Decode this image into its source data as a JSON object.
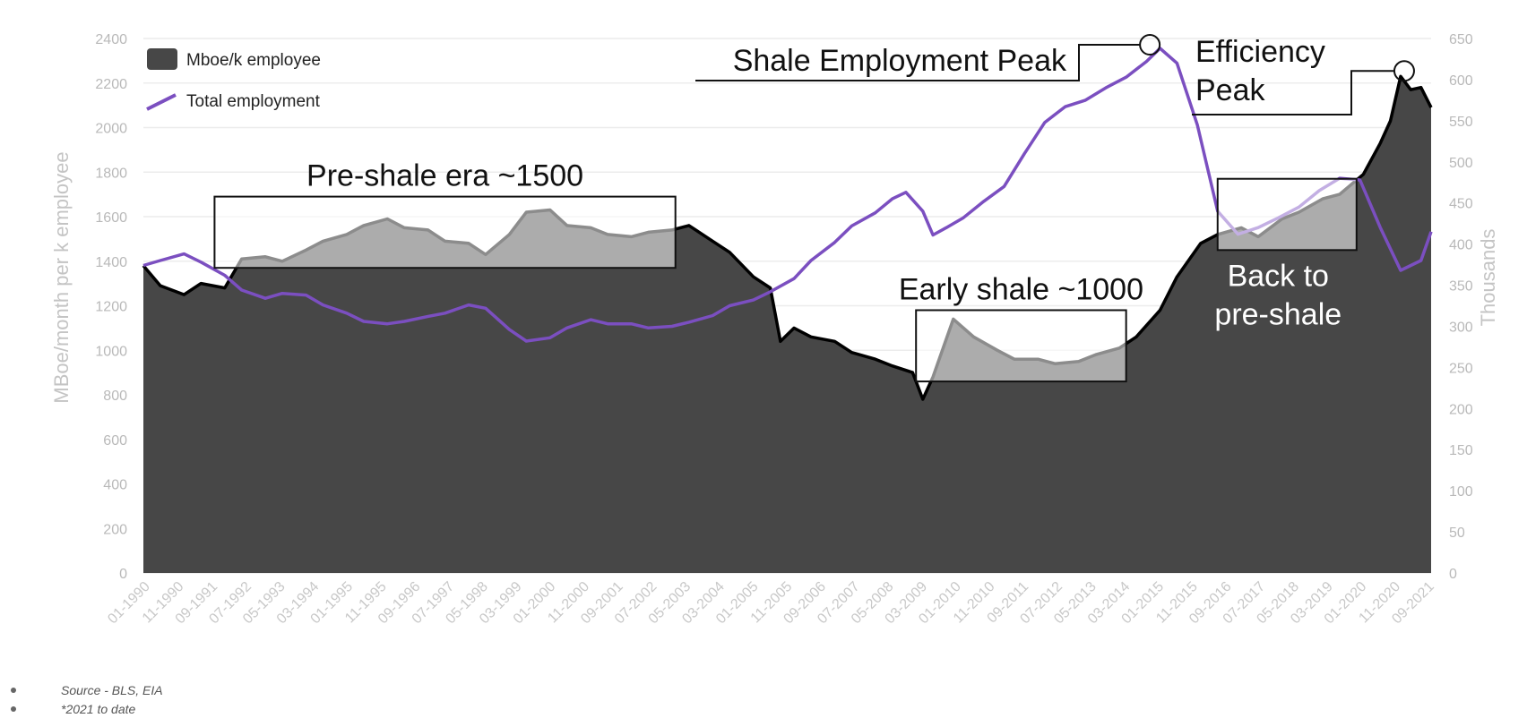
{
  "footnotes": [
    {
      "text": "Source - BLS, EIA"
    },
    {
      "text": "*2021 to date"
    }
  ],
  "colors": {
    "area": "#474747",
    "area_edge": "#000000",
    "employment_line": "#7b4fc0",
    "grid": "#ececec",
    "box_fill": "#ffffff",
    "box_stroke": "#111111"
  },
  "chart_data": {
    "type": "area",
    "title": "",
    "xlabel": "",
    "ylabel": "MBoe/month per k employee",
    "y2label": "Thousands",
    "ylim": [
      0,
      2400
    ],
    "y2lim": [
      0,
      650
    ],
    "yticks": [
      0,
      200,
      400,
      600,
      800,
      1000,
      1200,
      1400,
      1600,
      1800,
      2000,
      2200,
      2400
    ],
    "y2ticks": [
      0,
      50,
      100,
      150,
      200,
      250,
      300,
      350,
      400,
      450,
      500,
      550,
      600,
      650
    ],
    "xticks": [
      "01-1990",
      "11-1990",
      "09-1991",
      "07-1992",
      "05-1993",
      "03-1994",
      "01-1995",
      "11-1995",
      "09-1996",
      "07-1997",
      "05-1998",
      "03-1999",
      "01-2000",
      "11-2000",
      "09-2001",
      "07-2002",
      "05-2003",
      "03-2004",
      "01-2005",
      "11-2005",
      "09-2006",
      "07-2007",
      "05-2008",
      "03-2009",
      "01-2010",
      "11-2010",
      "09-2011",
      "07-2012",
      "05-2013",
      "03-2014",
      "01-2015",
      "11-2015",
      "09-2016",
      "07-2017",
      "05-2018",
      "03-2019",
      "01-2020",
      "11-2020",
      "09-2021"
    ],
    "grid": true,
    "legend_position": "top-left",
    "series": [
      {
        "name": "Mboe/k employee",
        "type": "area",
        "axis": "left",
        "x": [
          "1990-01",
          "1990-06",
          "1991-01",
          "1991-06",
          "1992-01",
          "1992-06",
          "1993-01",
          "1993-06",
          "1994-01",
          "1994-06",
          "1995-01",
          "1995-06",
          "1996-01",
          "1996-06",
          "1997-01",
          "1997-06",
          "1998-01",
          "1998-06",
          "1999-01",
          "1999-06",
          "2000-01",
          "2000-06",
          "2001-01",
          "2001-06",
          "2002-01",
          "2002-06",
          "2003-01",
          "2003-06",
          "2004-01",
          "2004-06",
          "2005-01",
          "2005-06",
          "2005-09",
          "2006-01",
          "2006-06",
          "2007-01",
          "2007-06",
          "2008-01",
          "2008-06",
          "2008-12",
          "2009-03",
          "2009-06",
          "2009-12",
          "2010-06",
          "2011-01",
          "2011-06",
          "2012-01",
          "2012-06",
          "2013-01",
          "2013-06",
          "2014-01",
          "2014-06",
          "2015-01",
          "2015-06",
          "2016-01",
          "2016-06",
          "2017-01",
          "2017-06",
          "2018-01",
          "2018-06",
          "2019-01",
          "2019-06",
          "2020-01",
          "2020-06",
          "2020-09",
          "2020-12",
          "2021-03",
          "2021-06",
          "2021-09"
        ],
        "values": [
          1380,
          1290,
          1250,
          1300,
          1280,
          1410,
          1420,
          1400,
          1450,
          1490,
          1520,
          1560,
          1590,
          1550,
          1540,
          1490,
          1480,
          1430,
          1520,
          1620,
          1630,
          1560,
          1550,
          1520,
          1510,
          1530,
          1540,
          1560,
          1490,
          1440,
          1330,
          1280,
          1040,
          1100,
          1060,
          1040,
          990,
          960,
          930,
          900,
          780,
          880,
          1140,
          1060,
          1000,
          960,
          960,
          940,
          950,
          980,
          1010,
          1060,
          1180,
          1330,
          1480,
          1520,
          1550,
          1510,
          1590,
          1620,
          1680,
          1700,
          1790,
          1930,
          2030,
          2230,
          2170,
          2180,
          2090
        ]
      },
      {
        "name": "Total employment",
        "type": "line",
        "axis": "right",
        "x": [
          "1990-01",
          "1990-06",
          "1991-01",
          "1991-06",
          "1992-01",
          "1992-06",
          "1993-01",
          "1993-06",
          "1994-01",
          "1994-06",
          "1995-01",
          "1995-06",
          "1996-01",
          "1996-06",
          "1997-01",
          "1997-06",
          "1998-01",
          "1998-06",
          "1999-01",
          "1999-06",
          "2000-01",
          "2000-06",
          "2001-01",
          "2001-06",
          "2002-01",
          "2002-06",
          "2003-01",
          "2003-06",
          "2004-01",
          "2004-06",
          "2005-01",
          "2005-06",
          "2006-01",
          "2006-06",
          "2007-01",
          "2007-06",
          "2008-01",
          "2008-06",
          "2008-10",
          "2009-03",
          "2009-06",
          "2009-10",
          "2010-03",
          "2010-09",
          "2011-03",
          "2011-09",
          "2012-03",
          "2012-09",
          "2013-03",
          "2013-09",
          "2014-03",
          "2014-09",
          "2015-01",
          "2015-06",
          "2015-12",
          "2016-06",
          "2016-12",
          "2017-06",
          "2017-12",
          "2018-06",
          "2018-12",
          "2019-06",
          "2019-12",
          "2020-06",
          "2020-12",
          "2021-06",
          "2021-09"
        ],
        "values": [
          374,
          380,
          388,
          378,
          362,
          344,
          334,
          340,
          338,
          326,
          316,
          306,
          303,
          306,
          312,
          316,
          326,
          322,
          296,
          282,
          286,
          298,
          308,
          303,
          303,
          298,
          300,
          305,
          313,
          325,
          332,
          342,
          358,
          380,
          402,
          422,
          438,
          455,
          463,
          440,
          411,
          420,
          432,
          452,
          470,
          510,
          548,
          567,
          575,
          590,
          603,
          622,
          638,
          620,
          545,
          440,
          412,
          420,
          432,
          445,
          465,
          480,
          478,
          420,
          368,
          380,
          415
        ]
      }
    ],
    "annotations": [
      {
        "label": "Pre-shale era ~1500",
        "range": [
          "1991-10",
          "2003-02"
        ]
      },
      {
        "label": "Early shale ~1000",
        "range": [
          "2009-01",
          "2014-03"
        ]
      },
      {
        "label": "Back to pre-shale",
        "range": [
          "2016-06",
          "2019-11"
        ]
      },
      {
        "label": "Shale Employment Peak",
        "at": "2014-10"
      },
      {
        "label": "Efficiency Peak",
        "at": "2020-12"
      }
    ]
  }
}
